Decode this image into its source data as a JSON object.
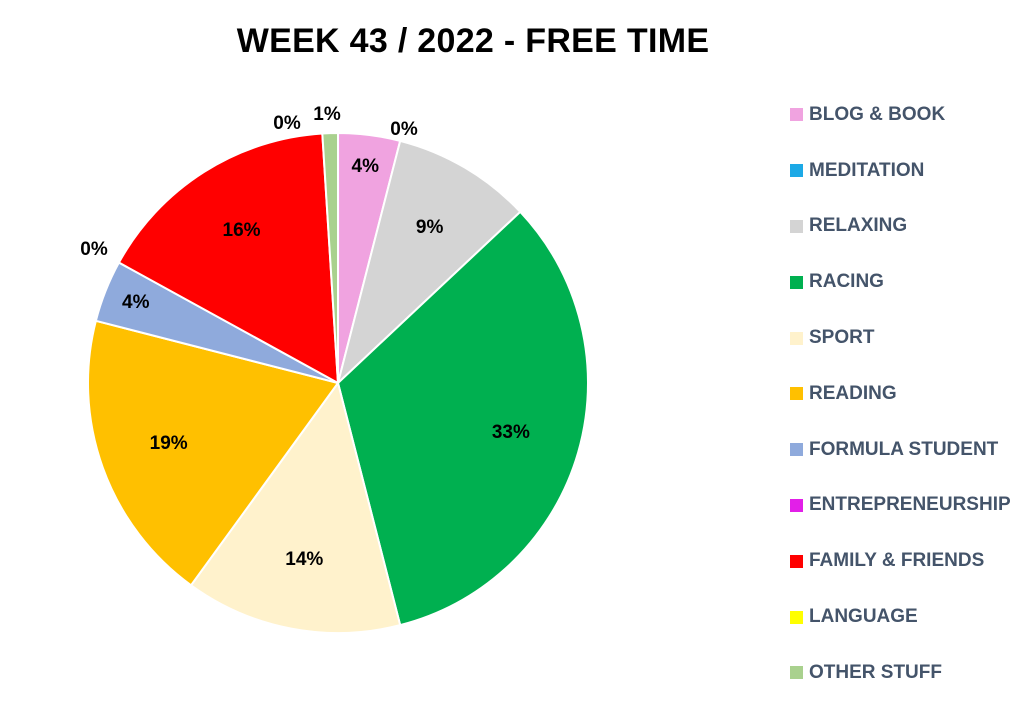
{
  "chart_data": {
    "type": "pie",
    "title": "WEEK 43 / 2022 - FREE TIME",
    "legend_position": "right",
    "slices": [
      {
        "name": "BLOG & BOOK",
        "value": 4,
        "label": "4%",
        "color": "#f0a3e0"
      },
      {
        "name": "MEDITATION",
        "value": 0,
        "label": "0%",
        "color": "#1ca9e6"
      },
      {
        "name": "RELAXING",
        "value": 9,
        "label": "9%",
        "color": "#d4d4d4"
      },
      {
        "name": "RACING",
        "value": 33,
        "label": "33%",
        "color": "#00b050"
      },
      {
        "name": "SPORT",
        "value": 14,
        "label": "14%",
        "color": "#fff2cc"
      },
      {
        "name": "READING",
        "value": 19,
        "label": "19%",
        "color": "#ffc000"
      },
      {
        "name": "FORMULA STUDENT",
        "value": 4,
        "label": "4%",
        "color": "#8faadc"
      },
      {
        "name": "ENTREPRENEURSHIP",
        "value": 0,
        "label": "0%",
        "color": "#e21fe8"
      },
      {
        "name": "FAMILY & FRIENDS",
        "value": 16,
        "label": "16%",
        "color": "#ff0000"
      },
      {
        "name": "LANGUAGE",
        "value": 0,
        "label": "0%",
        "color": "#ffff00"
      },
      {
        "name": "OTHER STUFF",
        "value": 1,
        "label": "1%",
        "color": "#a9d18e"
      }
    ]
  }
}
